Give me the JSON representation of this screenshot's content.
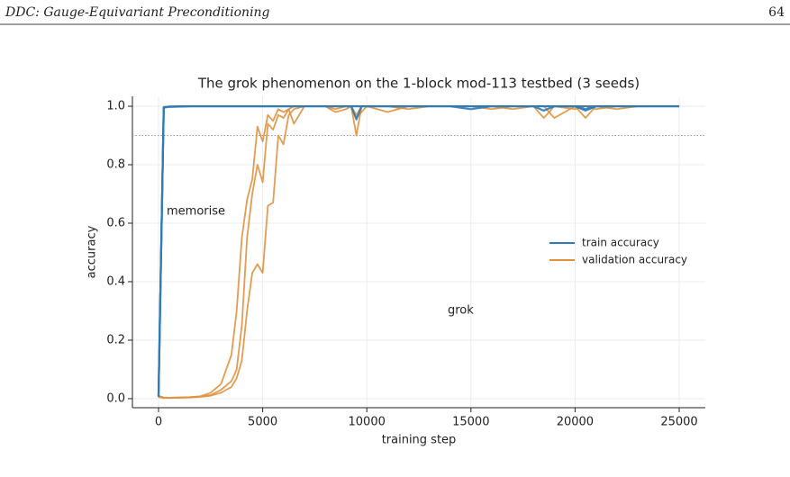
{
  "header": {
    "title": "DDC: Gauge-Equivariant Preconditioning",
    "page": "64"
  },
  "chart_data": {
    "type": "line",
    "title": "The grok phenomenon on the 1-block mod-113 testbed (3 seeds)",
    "xlabel": "training step",
    "ylabel": "accuracy",
    "annotations": [
      "memorise",
      "grok"
    ],
    "reference_line": 0.9,
    "legend": "center right",
    "grid": true,
    "xlim": [
      -1254,
      26254
    ],
    "ylim": [
      -0.031,
      1.034
    ],
    "xticks": [
      0,
      5000,
      10000,
      15000,
      20000,
      25000
    ],
    "yticks": [
      {
        "value": 0,
        "label": "0.0"
      },
      0.2,
      0.4,
      0.6,
      0.8,
      {
        "value": 1,
        "label": "1.0"
      }
    ],
    "x": [
      0,
      250,
      500,
      1000,
      1500,
      2000,
      2500,
      3000,
      3500,
      3750,
      4000,
      4250,
      4500,
      4750,
      5000,
      5250,
      5500,
      5750,
      6000,
      6250,
      6500,
      7000,
      7500,
      8000,
      8500,
      9000,
      9250,
      9500,
      9750,
      10000,
      11000,
      12000,
      13000,
      14000,
      15000,
      16000,
      17000,
      18000,
      18500,
      19000,
      20000,
      20500,
      21000,
      22000,
      23000,
      24000,
      25000
    ],
    "series": [
      {
        "name": "train accuracy",
        "color": "#2f7bb6",
        "values": [
          [
            0.01,
            0.997,
            0.998,
            0.999,
            1,
            1,
            1,
            1,
            1,
            1,
            1,
            1,
            1,
            1,
            1,
            1,
            1,
            1,
            1,
            1,
            1,
            1,
            1,
            1,
            1,
            1,
            1,
            0.955,
            1,
            1,
            1,
            1,
            1,
            1,
            1,
            1,
            1,
            1,
            0.985,
            1,
            1,
            0.985,
            1,
            1,
            1,
            1,
            1
          ],
          [
            0.005,
            0.995,
            0.998,
            0.999,
            1,
            1,
            1,
            1,
            1,
            1,
            1,
            1,
            1,
            1,
            1,
            1,
            1,
            1,
            1,
            1,
            1,
            1,
            1,
            1,
            1,
            1,
            1,
            1,
            1,
            1,
            1,
            1,
            1,
            1,
            0.99,
            1,
            1,
            1,
            1,
            1,
            1,
            0.99,
            1,
            1,
            1,
            1,
            1
          ],
          [
            0.01,
            0.996,
            0.999,
            1,
            1,
            1,
            1,
            1,
            1,
            1,
            1,
            1,
            1,
            1,
            1,
            1,
            1,
            1,
            1,
            1,
            1,
            1,
            1,
            1,
            1,
            1,
            1,
            1,
            1,
            1,
            1,
            1,
            1,
            1,
            1,
            1,
            1,
            1,
            1,
            1,
            1,
            1,
            1,
            1,
            1,
            1,
            1
          ]
        ]
      },
      {
        "name": "validation accuracy",
        "color": "#e0913f",
        "values": [
          [
            0.01,
            0.004,
            0.003,
            0.004,
            0.005,
            0.008,
            0.02,
            0.05,
            0.15,
            0.3,
            0.55,
            0.68,
            0.75,
            0.93,
            0.88,
            0.97,
            0.95,
            0.99,
            0.98,
            0.99,
            1,
            1,
            1,
            1,
            0.99,
            1,
            1,
            0.97,
            1,
            1,
            1,
            0.99,
            1,
            1,
            1,
            1,
            0.99,
            1,
            0.96,
            1,
            1,
            0.96,
            1,
            0.99,
            1,
            1,
            1
          ],
          [
            0.008,
            0.003,
            0.003,
            0.004,
            0.005,
            0.007,
            0.012,
            0.03,
            0.06,
            0.1,
            0.25,
            0.55,
            0.7,
            0.8,
            0.74,
            0.94,
            0.92,
            0.97,
            0.96,
            0.99,
            0.94,
            1,
            1,
            1,
            1,
            1,
            1,
            0.9,
            1,
            1,
            1,
            1,
            1,
            1,
            1,
            1,
            1,
            1,
            1,
            0.96,
            1,
            1,
            0.99,
            1,
            1,
            1,
            1
          ],
          [
            0.005,
            0.002,
            0.003,
            0.003,
            0.004,
            0.006,
            0.01,
            0.02,
            0.04,
            0.07,
            0.13,
            0.3,
            0.43,
            0.46,
            0.43,
            0.66,
            0.67,
            0.9,
            0.87,
            0.97,
            0.99,
            1,
            1,
            1,
            0.98,
            0.99,
            1,
            0.96,
            0.98,
            1,
            0.98,
            1,
            1,
            1,
            1,
            0.99,
            1,
            1,
            1,
            1,
            0.99,
            1,
            1,
            1,
            1,
            1,
            1
          ]
        ]
      }
    ]
  }
}
